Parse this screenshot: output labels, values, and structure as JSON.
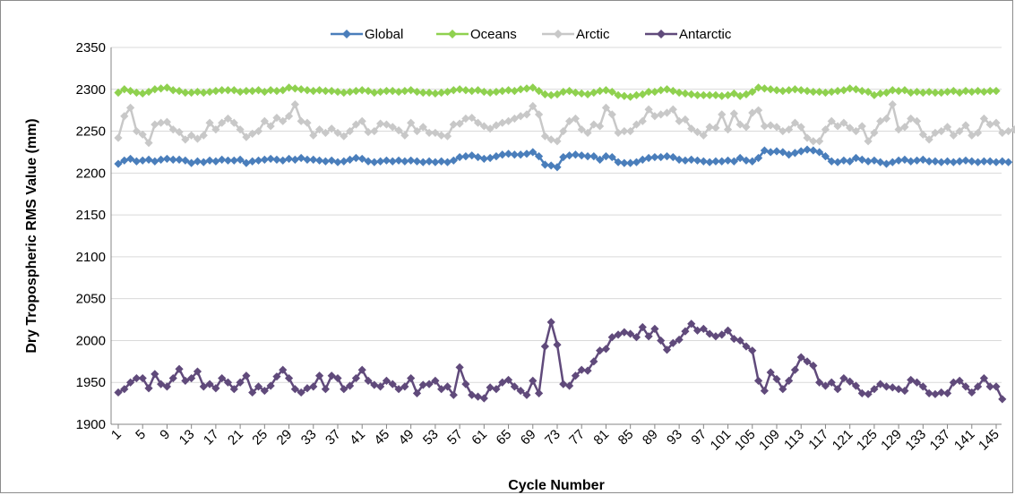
{
  "chart_data": {
    "type": "line",
    "title": "",
    "xlabel": "Cycle Number",
    "ylabel": "Dry Tropospheric RMS Value (mm)",
    "ylim": [
      1900,
      2350
    ],
    "yticks": [
      1900,
      1950,
      2000,
      2050,
      2100,
      2150,
      2200,
      2250,
      2300,
      2350
    ],
    "xlim": [
      1,
      145
    ],
    "xtick_labels": [
      1,
      5,
      9,
      13,
      17,
      21,
      25,
      29,
      33,
      37,
      41,
      45,
      49,
      53,
      57,
      61,
      65,
      69,
      73,
      77,
      81,
      85,
      89,
      93,
      97,
      101,
      105,
      109,
      113,
      117,
      121,
      125,
      129,
      133,
      137,
      141,
      145
    ],
    "grid": "horizontal",
    "legend_position": "top-center",
    "marker": "diamond",
    "series": [
      {
        "name": "Global",
        "color": "#4a7ebb",
        "values": [
          2211,
          2215,
          2217,
          2214,
          2215,
          2216,
          2214,
          2216,
          2217,
          2216,
          2216,
          2215,
          2212,
          2214,
          2213,
          2215,
          2214,
          2216,
          2215,
          2215,
          2216,
          2212,
          2214,
          2215,
          2216,
          2217,
          2216,
          2215,
          2217,
          2216,
          2218,
          2216,
          2216,
          2215,
          2214,
          2215,
          2213,
          2214,
          2216,
          2218,
          2217,
          2214,
          2213,
          2214,
          2215,
          2214,
          2215,
          2214,
          2215,
          2214,
          2213,
          2214,
          2213,
          2214,
          2213,
          2215,
          2219,
          2220,
          2221,
          2219,
          2217,
          2218,
          2220,
          2222,
          2223,
          2222,
          2222,
          2223,
          2225,
          2220,
          2210,
          2209,
          2207,
          2219,
          2221,
          2222,
          2221,
          2220,
          2220,
          2216,
          2220,
          2219,
          2213,
          2212,
          2212,
          2213,
          2216,
          2218,
          2219,
          2219,
          2220,
          2219,
          2216,
          2215,
          2216,
          2215,
          2214,
          2213,
          2214,
          2214,
          2215,
          2214,
          2218,
          2215,
          2214,
          2218,
          2227,
          2225,
          2226,
          2225,
          2222,
          2224,
          2226,
          2228,
          2227,
          2225,
          2220,
          2214,
          2213,
          2215,
          2214,
          2218,
          2216,
          2214,
          2215,
          2213,
          2211,
          2213,
          2215,
          2216,
          2214,
          2215,
          2216,
          2214,
          2214,
          2213,
          2214,
          2213,
          2214,
          2215,
          2214,
          2213,
          2214,
          2214,
          2213,
          2214,
          2213
        ]
      },
      {
        "name": "Oceans",
        "color": "#8fd14f",
        "values": [
          2296,
          2300,
          2298,
          2296,
          2295,
          2297,
          2300,
          2301,
          2302,
          2299,
          2298,
          2296,
          2296,
          2297,
          2296,
          2297,
          2298,
          2299,
          2299,
          2299,
          2297,
          2298,
          2298,
          2299,
          2297,
          2299,
          2298,
          2299,
          2302,
          2301,
          2300,
          2299,
          2298,
          2299,
          2298,
          2298,
          2297,
          2296,
          2297,
          2298,
          2299,
          2298,
          2296,
          2297,
          2298,
          2298,
          2297,
          2298,
          2299,
          2297,
          2296,
          2296,
          2295,
          2296,
          2297,
          2299,
          2300,
          2299,
          2298,
          2299,
          2297,
          2296,
          2297,
          2298,
          2299,
          2298,
          2300,
          2301,
          2302,
          2298,
          2294,
          2293,
          2294,
          2297,
          2298,
          2296,
          2295,
          2294,
          2296,
          2298,
          2299,
          2297,
          2293,
          2292,
          2291,
          2293,
          2294,
          2297,
          2297,
          2299,
          2300,
          2298,
          2296,
          2295,
          2294,
          2293,
          2293,
          2293,
          2293,
          2292,
          2293,
          2295,
          2292,
          2294,
          2297,
          2302,
          2301,
          2300,
          2299,
          2298,
          2299,
          2300,
          2299,
          2298,
          2297,
          2297,
          2296,
          2297,
          2298,
          2299,
          2301,
          2300,
          2298,
          2297,
          2293,
          2295,
          2296,
          2299,
          2298,
          2299,
          2296,
          2297,
          2296,
          2297,
          2296,
          2296,
          2297,
          2298,
          2296,
          2298,
          2297,
          2298,
          2297,
          2298,
          2298
        ]
      },
      {
        "name": "Arctic",
        "color": "#c8c8c8",
        "values": [
          2242,
          2268,
          2278,
          2250,
          2246,
          2236,
          2258,
          2260,
          2261,
          2252,
          2249,
          2240,
          2245,
          2241,
          2245,
          2260,
          2252,
          2260,
          2265,
          2260,
          2252,
          2243,
          2247,
          2250,
          2262,
          2256,
          2266,
          2262,
          2268,
          2282,
          2262,
          2260,
          2245,
          2252,
          2248,
          2253,
          2248,
          2244,
          2250,
          2258,
          2262,
          2249,
          2250,
          2259,
          2258,
          2255,
          2251,
          2245,
          2260,
          2250,
          2255,
          2248,
          2248,
          2245,
          2244,
          2258,
          2259,
          2265,
          2266,
          2260,
          2256,
          2253,
          2257,
          2260,
          2262,
          2265,
          2268,
          2270,
          2280,
          2270,
          2244,
          2240,
          2238,
          2250,
          2262,
          2265,
          2252,
          2248,
          2258,
          2256,
          2278,
          2270,
          2248,
          2250,
          2250,
          2258,
          2262,
          2276,
          2268,
          2270,
          2272,
          2276,
          2262,
          2264,
          2253,
          2249,
          2245,
          2255,
          2254,
          2270,
          2252,
          2271,
          2258,
          2255,
          2272,
          2275,
          2256,
          2257,
          2255,
          2250,
          2252,
          2260,
          2255,
          2242,
          2238,
          2238,
          2252,
          2262,
          2256,
          2260,
          2254,
          2250,
          2256,
          2238,
          2248,
          2262,
          2265,
          2282,
          2252,
          2255,
          2265,
          2262,
          2246,
          2240,
          2248,
          2250,
          2255,
          2245,
          2250,
          2257,
          2245,
          2248,
          2265,
          2258,
          2260,
          2248,
          2250,
          2252
        ]
      },
      {
        "name": "Antarctic",
        "color": "#604a7b",
        "values": [
          1938,
          1942,
          1950,
          1955,
          1955,
          1943,
          1960,
          1948,
          1945,
          1955,
          1966,
          1952,
          1955,
          1963,
          1945,
          1948,
          1943,
          1955,
          1950,
          1942,
          1950,
          1958,
          1938,
          1945,
          1940,
          1946,
          1957,
          1965,
          1955,
          1942,
          1938,
          1943,
          1945,
          1958,
          1942,
          1958,
          1955,
          1942,
          1946,
          1955,
          1965,
          1952,
          1947,
          1945,
          1952,
          1948,
          1942,
          1945,
          1955,
          1937,
          1947,
          1948,
          1952,
          1942,
          1945,
          1935,
          1968,
          1948,
          1935,
          1933,
          1931,
          1944,
          1942,
          1950,
          1953,
          1945,
          1940,
          1935,
          1952,
          1937,
          1993,
          2022,
          1995,
          1948,
          1946,
          1958,
          1965,
          1964,
          1975,
          1988,
          1990,
          2004,
          2007,
          2010,
          2008,
          2004,
          2016,
          2005,
          2014,
          2000,
          1989,
          1997,
          2001,
          2011,
          2020,
          2012,
          2014,
          2008,
          2005,
          2007,
          2012,
          2002,
          2000,
          1993,
          1988,
          1952,
          1940,
          1962,
          1954,
          1942,
          1952,
          1965,
          1980,
          1975,
          1970,
          1950,
          1946,
          1950,
          1942,
          1955,
          1951,
          1946,
          1937,
          1936,
          1942,
          1948,
          1945,
          1944,
          1942,
          1940,
          1953,
          1950,
          1945,
          1937,
          1936,
          1938,
          1937,
          1950,
          1952,
          1945,
          1938,
          1945,
          1955,
          1945,
          1945,
          1930
        ]
      }
    ]
  }
}
